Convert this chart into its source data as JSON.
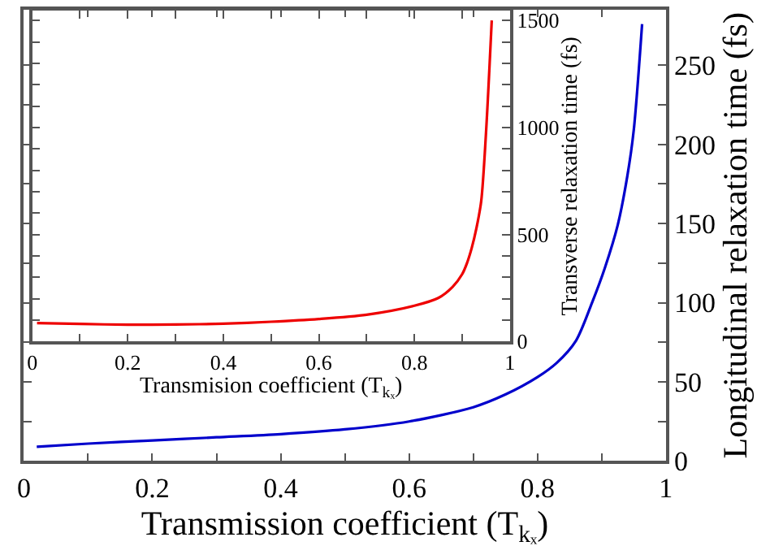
{
  "chart_data": [
    {
      "type": "line",
      "xlabel": "Transmission coefficient (T$_{kₓ}$)",
      "ylabel": "Longitudinal relaxation time (fs)",
      "x": [
        0.02,
        0.1,
        0.2,
        0.3,
        0.4,
        0.5,
        0.6,
        0.7,
        0.75,
        0.8,
        0.83,
        0.86,
        0.885,
        0.905,
        0.925,
        0.94,
        0.95,
        0.963
      ],
      "series": [
        {
          "color": "#0000cc",
          "values": [
            9,
            11,
            13,
            15,
            17,
            20,
            25,
            34,
            42,
            53,
            62,
            76,
            100,
            122,
            149,
            180,
            209,
            276
          ]
        }
      ],
      "xlim": [
        0,
        1
      ],
      "ylim": [
        0,
        285
      ],
      "xticks": [
        0,
        {
          "value": 0.1,
          "label": null
        },
        0.2,
        {
          "value": 0.3,
          "label": null
        },
        0.4,
        {
          "value": 0.5,
          "label": null
        },
        0.6,
        {
          "value": 0.7,
          "label": null
        },
        0.8,
        {
          "value": 0.9,
          "label": null
        },
        1
      ],
      "yticks": [
        0,
        {
          "value": 25,
          "label": null
        },
        50,
        {
          "value": 75,
          "label": null
        },
        100,
        {
          "value": 125,
          "label": null
        },
        150,
        {
          "value": 175,
          "label": null
        },
        200,
        {
          "value": 225,
          "label": null
        },
        250
      ]
    },
    {
      "type": "line",
      "xlabel": "Transmision coefficient (T$_{kₓ}$)",
      "ylabel": "Transverse relaxation time (fs)",
      "x": [
        0.01,
        0.1,
        0.2,
        0.3,
        0.4,
        0.5,
        0.6,
        0.7,
        0.8,
        0.85,
        0.88,
        0.9,
        0.91,
        0.92,
        0.93,
        0.94,
        0.95,
        0.962
      ],
      "series": [
        {
          "color": "#ee0000",
          "values": [
            86,
            82,
            78,
            79,
            83,
            92,
            105,
            125,
            167,
            203,
            255,
            314,
            365,
            436,
            530,
            657,
            975,
            1500
          ]
        }
      ],
      "xlim": [
        0,
        1
      ],
      "ylim": [
        0,
        1545
      ],
      "xticks": [
        0,
        {
          "value": 0.1,
          "label": null
        },
        0.2,
        {
          "value": 0.3,
          "label": null
        },
        0.4,
        {
          "value": 0.5,
          "label": null
        },
        0.6,
        {
          "value": 0.7,
          "label": null
        },
        0.8,
        {
          "value": 0.9,
          "label": null
        },
        1
      ],
      "yticks": [
        0,
        {
          "value": 100,
          "label": null
        },
        {
          "value": 200,
          "label": null
        },
        {
          "value": 300,
          "label": null
        },
        {
          "value": 400,
          "label": null
        },
        500,
        {
          "value": 600,
          "label": null
        },
        {
          "value": 700,
          "label": null
        },
        {
          "value": 800,
          "label": null
        },
        {
          "value": 900,
          "label": null
        },
        1000,
        {
          "value": 1100,
          "label": null
        },
        {
          "value": 1200,
          "label": null
        },
        {
          "value": 1300,
          "label": null
        },
        {
          "value": 1400,
          "label": null
        },
        1500
      ]
    }
  ]
}
